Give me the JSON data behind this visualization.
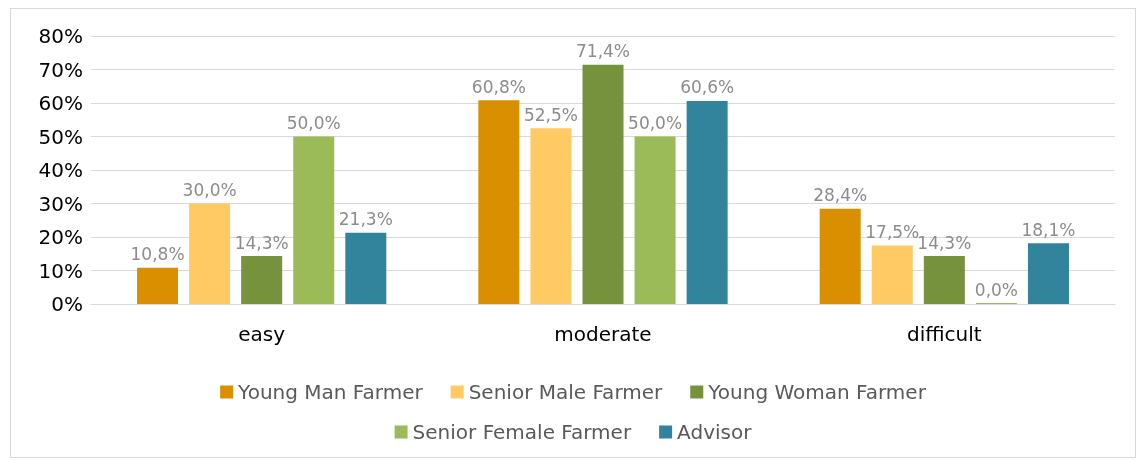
{
  "chart_data": {
    "type": "bar",
    "categories": [
      "easy",
      "moderate",
      "difficult"
    ],
    "series": [
      {
        "name": "Young Man Farmer",
        "color": "#da8f00",
        "values": [
          10.8,
          60.8,
          28.4
        ],
        "value_labels": [
          "10,8%",
          "60,8%",
          "28,4%"
        ]
      },
      {
        "name": "Senior Male Farmer",
        "color": "#ffca64",
        "values": [
          30.0,
          52.5,
          17.5
        ],
        "value_labels": [
          "30,0%",
          "52,5%",
          "17,5%"
        ]
      },
      {
        "name": "Young Woman Farmer",
        "color": "#76923c",
        "values": [
          14.3,
          71.4,
          14.3
        ],
        "value_labels": [
          "14,3%",
          "71,4%",
          "14,3%"
        ]
      },
      {
        "name": "Senior Female Farmer",
        "color": "#9bbb59",
        "values": [
          50.0,
          50.0,
          0.0
        ],
        "value_labels": [
          "50,0%",
          "50,0%",
          "0,0%"
        ]
      },
      {
        "name": "Advisor",
        "color": "#31849b",
        "values": [
          21.3,
          60.6,
          18.1
        ],
        "value_labels": [
          "21,3%",
          "60,6%",
          "18,1%"
        ]
      }
    ],
    "ylim": [
      0,
      80
    ],
    "yticks": [
      {
        "value": 0,
        "label": "0%"
      },
      {
        "value": 10,
        "label": "10%"
      },
      {
        "value": 20,
        "label": "20%"
      },
      {
        "value": 30,
        "label": "30%"
      },
      {
        "value": 40,
        "label": "40%"
      },
      {
        "value": 50,
        "label": "50%"
      },
      {
        "value": 60,
        "label": "60%"
      },
      {
        "value": 70,
        "label": "70%"
      },
      {
        "value": 80,
        "label": "80%"
      }
    ],
    "grid": "y",
    "legend": "bottom"
  }
}
